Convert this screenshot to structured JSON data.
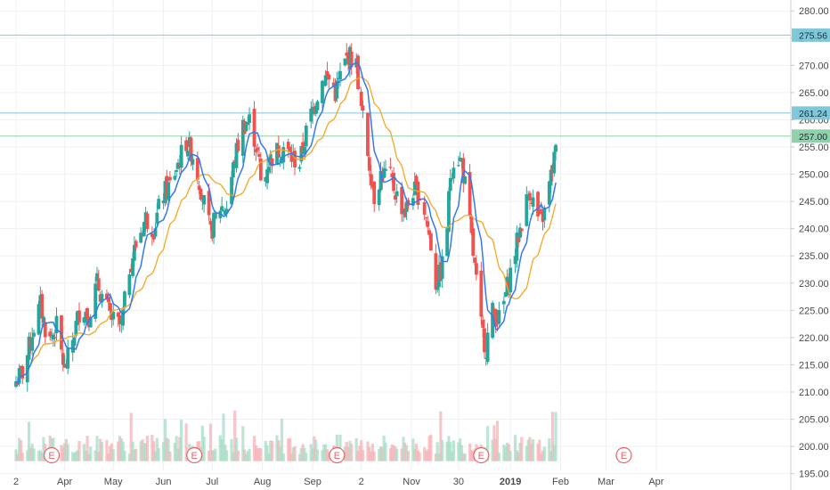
{
  "chart_data": {
    "type": "candlestick",
    "title": "",
    "xlabel": "",
    "ylabel": "",
    "ylim": [
      192,
      282
    ],
    "y_ticks": [
      "195.00",
      "200.00",
      "205.00",
      "210.00",
      "215.00",
      "220.00",
      "225.00",
      "230.00",
      "235.00",
      "240.00",
      "245.00",
      "250.00",
      "255.00",
      "260.00",
      "265.00",
      "270.00",
      "275.00",
      "280.00"
    ],
    "x_ticks": [
      {
        "label": "2",
        "day": 0
      },
      {
        "label": "Apr",
        "day": 30
      },
      {
        "label": "May",
        "day": 60
      },
      {
        "label": "Jun",
        "day": 91
      },
      {
        "label": "Jul",
        "day": 121
      },
      {
        "label": "Aug",
        "day": 152
      },
      {
        "label": "Sep",
        "day": 183
      },
      {
        "label": "2",
        "day": 213
      },
      {
        "label": "Nov",
        "day": 244
      },
      {
        "label": "30",
        "day": 273
      },
      {
        "label": "2019",
        "day": 305
      },
      {
        "label": "Feb",
        "day": 336
      },
      {
        "label": "Mar",
        "day": 364
      },
      {
        "label": "Apr",
        "day": 395
      }
    ],
    "horizontal_lines": [
      {
        "value": 275.56,
        "label": "275.56",
        "color": "#7fc8d9"
      },
      {
        "value": 261.24,
        "label": "261.24",
        "color": "#7fc8d9"
      },
      {
        "value": 257.0,
        "label": "257.00",
        "color": "#8fd1a8"
      }
    ],
    "earnings_markers": [
      {
        "label": "E",
        "day": 22
      },
      {
        "label": "E",
        "day": 110
      },
      {
        "label": "E",
        "day": 198
      },
      {
        "label": "E",
        "day": 287
      },
      {
        "label": "E",
        "day": 375
      }
    ],
    "series": [
      {
        "name": "",
        "type": "candlestick",
        "color_up": "#26a69a",
        "color_down": "#ef5350",
        "anchors_close": [
          [
            0,
            212
          ],
          [
            5,
            214
          ],
          [
            10,
            221
          ],
          [
            15,
            226
          ],
          [
            20,
            219
          ],
          [
            25,
            222
          ],
          [
            30,
            214
          ],
          [
            33,
            217
          ],
          [
            36,
            221
          ],
          [
            40,
            226
          ],
          [
            45,
            224
          ],
          [
            50,
            230
          ],
          [
            55,
            226
          ],
          [
            60,
            223
          ],
          [
            65,
            222
          ],
          [
            70,
            233
          ],
          [
            75,
            238
          ],
          [
            80,
            242
          ],
          [
            85,
            240
          ],
          [
            90,
            246
          ],
          [
            95,
            248
          ],
          [
            100,
            252
          ],
          [
            105,
            256
          ],
          [
            110,
            253
          ],
          [
            115,
            246
          ],
          [
            120,
            239
          ],
          [
            125,
            244
          ],
          [
            130,
            244
          ],
          [
            135,
            253
          ],
          [
            140,
            259
          ],
          [
            145,
            260
          ],
          [
            150,
            252
          ],
          [
            152,
            245
          ],
          [
            155,
            252
          ],
          [
            160,
            254
          ],
          [
            165,
            255
          ],
          [
            170,
            253
          ],
          [
            175,
            252
          ],
          [
            180,
            259
          ],
          [
            185,
            264
          ],
          [
            190,
            268
          ],
          [
            195,
            267
          ],
          [
            197,
            265
          ],
          [
            200,
            268
          ],
          [
            205,
            272
          ],
          [
            210,
            270
          ],
          [
            213,
            262
          ],
          [
            217,
            254
          ],
          [
            221,
            246
          ],
          [
            225,
            250
          ],
          [
            230,
            250
          ],
          [
            235,
            246
          ],
          [
            240,
            243
          ],
          [
            245,
            247
          ],
          [
            250,
            246
          ],
          [
            253,
            242
          ],
          [
            256,
            237
          ],
          [
            259,
            230
          ],
          [
            262,
            232
          ],
          [
            265,
            236
          ],
          [
            268,
            250
          ],
          [
            271,
            254
          ],
          [
            275,
            252
          ],
          [
            278,
            246
          ],
          [
            281,
            238
          ],
          [
            284,
            230
          ],
          [
            287,
            222
          ],
          [
            290,
            218
          ],
          [
            293,
            225
          ],
          [
            296,
            224
          ],
          [
            299,
            223
          ],
          [
            302,
            228
          ],
          [
            305,
            232
          ],
          [
            308,
            236
          ],
          [
            311,
            240
          ],
          [
            314,
            244
          ],
          [
            317,
            247
          ],
          [
            320,
            244
          ],
          [
            323,
            241
          ],
          [
            326,
            243
          ],
          [
            329,
            248
          ],
          [
            332,
            253
          ],
          [
            334,
            255
          ]
        ]
      },
      {
        "name": "",
        "type": "moving-average",
        "color": "#3179f5"
      },
      {
        "name": "",
        "type": "moving-average",
        "color": "#f5a623"
      }
    ],
    "volume": {
      "baseline": 197.3,
      "color_up": "#a6dcc4",
      "color_down": "#f4b3b5"
    },
    "grid": true,
    "price_axis": "right",
    "legend": "none"
  }
}
